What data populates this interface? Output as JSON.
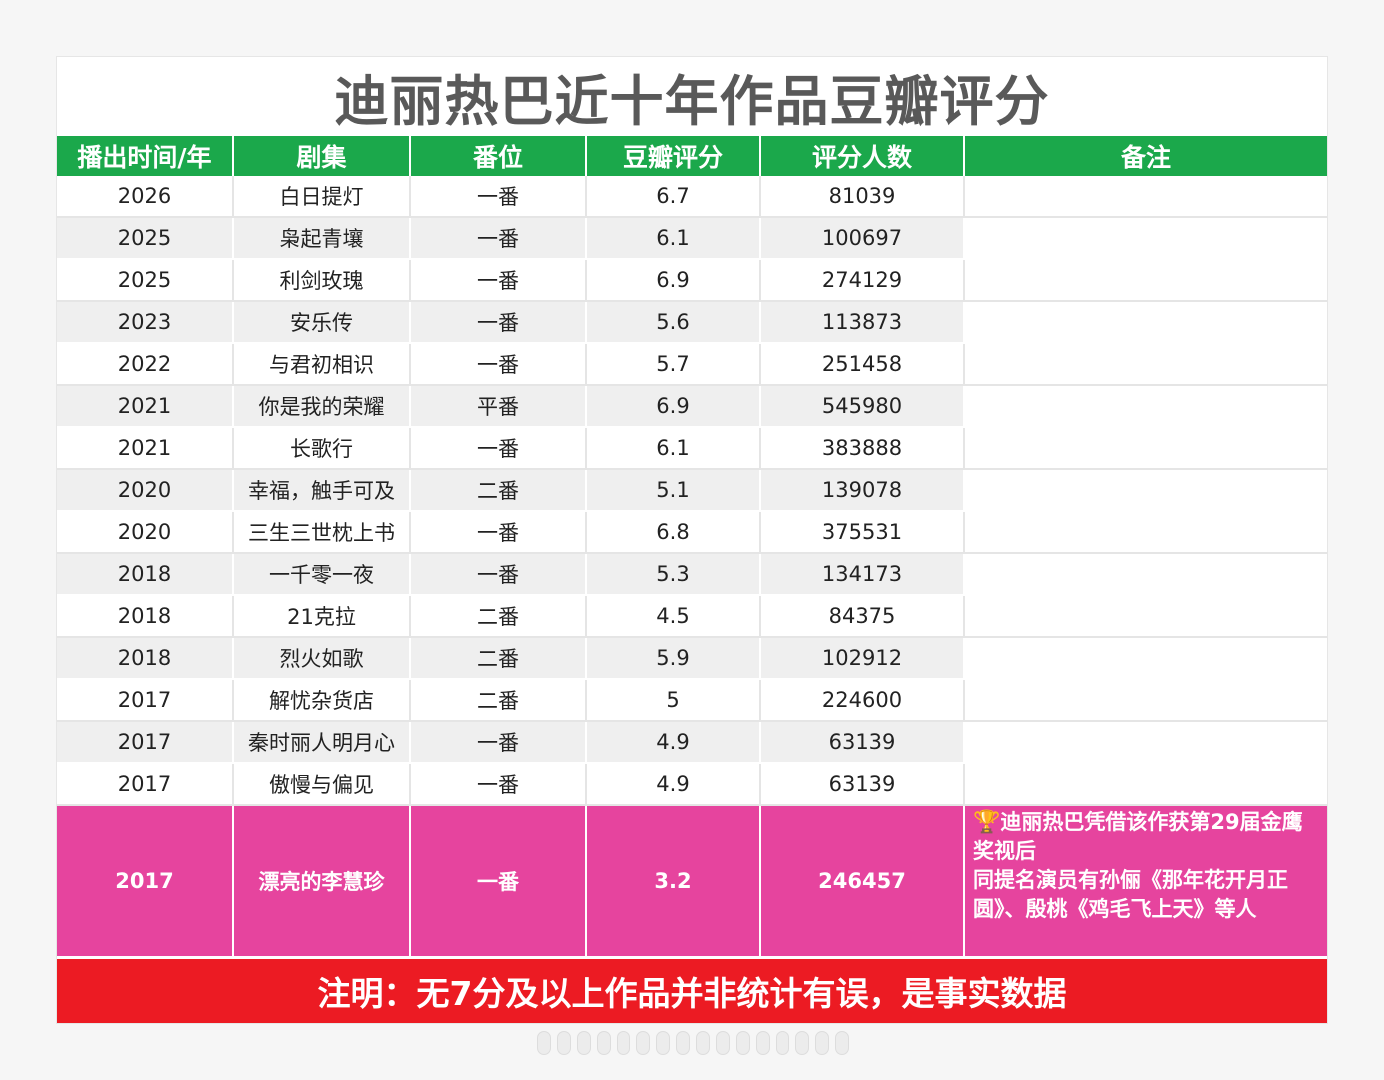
{
  "title": "迪丽热巴近十年作品豆瓣评分",
  "columns": [
    "播出时间/年",
    "剧集",
    "番位",
    "豆瓣评分",
    "评分人数",
    "备注"
  ],
  "rows": [
    {
      "year": "2026",
      "drama": "白日提灯",
      "billing": "一番",
      "score": "6.7",
      "count": "81039",
      "note": ""
    },
    {
      "year": "2025",
      "drama": "枭起青壤",
      "billing": "一番",
      "score": "6.1",
      "count": "100697",
      "note": ""
    },
    {
      "year": "2025",
      "drama": "利剑玫瑰",
      "billing": "一番",
      "score": "6.9",
      "count": "274129",
      "note": ""
    },
    {
      "year": "2023",
      "drama": "安乐传",
      "billing": "一番",
      "score": "5.6",
      "count": "113873",
      "note": ""
    },
    {
      "year": "2022",
      "drama": "与君初相识",
      "billing": "一番",
      "score": "5.7",
      "count": "251458",
      "note": ""
    },
    {
      "year": "2021",
      "drama": "你是我的荣耀",
      "billing": "平番",
      "score": "6.9",
      "count": "545980",
      "note": ""
    },
    {
      "year": "2021",
      "drama": "长歌行",
      "billing": "一番",
      "score": "6.1",
      "count": "383888",
      "note": ""
    },
    {
      "year": "2020",
      "drama": "幸福，触手可及",
      "billing": "二番",
      "score": "5.1",
      "count": "139078",
      "note": ""
    },
    {
      "year": "2020",
      "drama": "三生三世枕上书",
      "billing": "一番",
      "score": "6.8",
      "count": "375531",
      "note": ""
    },
    {
      "year": "2018",
      "drama": "一千零一夜",
      "billing": "一番",
      "score": "5.3",
      "count": "134173",
      "note": ""
    },
    {
      "year": "2018",
      "drama": "21克拉",
      "billing": "二番",
      "score": "4.5",
      "count": "84375",
      "note": ""
    },
    {
      "year": "2018",
      "drama": "烈火如歌",
      "billing": "二番",
      "score": "5.9",
      "count": "102912",
      "note": ""
    },
    {
      "year": "2017",
      "drama": "解忧杂货店",
      "billing": "二番",
      "score": "5",
      "count": "224600",
      "note": ""
    },
    {
      "year": "2017",
      "drama": "秦时丽人明月心",
      "billing": "一番",
      "score": "4.9",
      "count": "63139",
      "note": ""
    },
    {
      "year": "2017",
      "drama": "傲慢与偏见",
      "billing": "一番",
      "score": "4.9",
      "count": "63139",
      "note": ""
    }
  ],
  "highlight_row": {
    "year": "2017",
    "drama": "漂亮的李慧珍",
    "billing": "一番",
    "score": "3.2",
    "count": "246457",
    "note_icon": "trophy-icon",
    "note_line1": "迪丽热巴凭借该作获第29届金鹰奖视后",
    "note_line2": "同提名演员有孙俪《那年花开月正圆》、殷桃《鸡毛飞上天》等人"
  },
  "footer_note": "注明：无7分及以上作品并非统计有误，是事实数据",
  "colors": {
    "header_green": "#1ba84b",
    "highlight_pink": "#e6449e",
    "footer_red": "#ec1b23",
    "title_gray": "#595959"
  }
}
